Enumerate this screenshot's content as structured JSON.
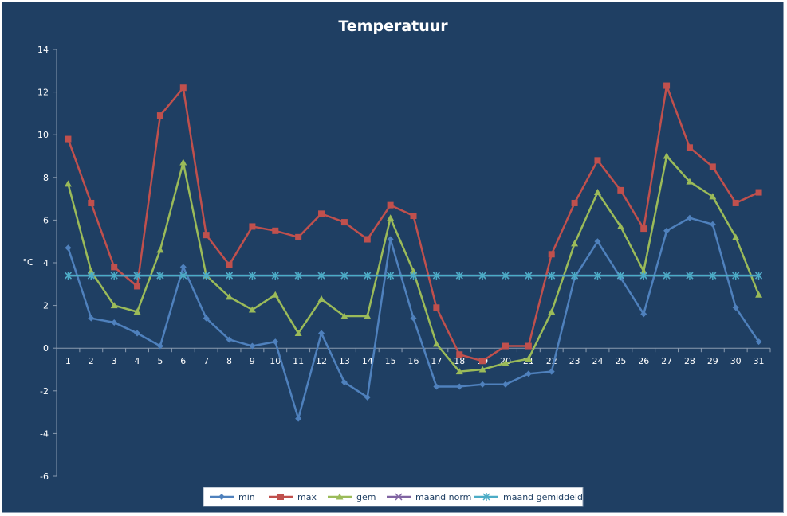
{
  "chart_data": {
    "type": "line",
    "title": "Temperatuur",
    "xlabel": "",
    "ylabel": "°C",
    "ylim": [
      -6,
      14
    ],
    "ytick_step": 2,
    "grid": false,
    "legend_position": "bottom",
    "background_color": "#1f3f63",
    "categories": [
      "1",
      "2",
      "3",
      "4",
      "5",
      "6",
      "7",
      "8",
      "9",
      "10",
      "11",
      "12",
      "13",
      "14",
      "15",
      "16",
      "17",
      "18",
      "19",
      "20",
      "21",
      "22",
      "23",
      "24",
      "25",
      "26",
      "27",
      "28",
      "29",
      "30",
      "31"
    ],
    "series": [
      {
        "name": "min",
        "color": "#4f81bd",
        "marker": "diamond",
        "values": [
          4.7,
          1.4,
          1.2,
          0.7,
          0.1,
          3.8,
          1.4,
          0.4,
          0.1,
          0.3,
          -3.3,
          0.7,
          -1.6,
          -2.3,
          5.1,
          1.4,
          -1.8,
          -1.8,
          -1.7,
          -1.7,
          -1.2,
          -1.1,
          3.3,
          5.0,
          3.3,
          1.6,
          5.5,
          6.1,
          5.8,
          1.9,
          0.3
        ]
      },
      {
        "name": "max",
        "color": "#c0504d",
        "marker": "square",
        "values": [
          9.8,
          6.8,
          3.8,
          2.9,
          10.9,
          12.2,
          5.3,
          3.9,
          5.7,
          5.5,
          5.2,
          6.3,
          5.9,
          5.1,
          6.7,
          6.2,
          1.9,
          -0.3,
          -0.6,
          0.1,
          0.1,
          4.4,
          6.8,
          8.8,
          7.4,
          5.6,
          12.3,
          9.4,
          8.5,
          6.8,
          7.3
        ]
      },
      {
        "name": "gem",
        "color": "#9bbb59",
        "marker": "triangle",
        "values": [
          7.7,
          3.6,
          2.0,
          1.7,
          4.6,
          8.7,
          3.4,
          2.4,
          1.8,
          2.5,
          0.7,
          2.3,
          1.5,
          1.5,
          6.1,
          3.6,
          0.2,
          -1.1,
          -1.0,
          -0.7,
          -0.5,
          1.7,
          4.9,
          7.3,
          5.7,
          3.6,
          9.0,
          7.8,
          7.1,
          5.2,
          2.5
        ]
      },
      {
        "name": "maand norm",
        "color": "#8064a2",
        "marker": "x",
        "values": [
          3.4,
          3.4,
          3.4,
          3.4,
          3.4,
          3.4,
          3.4,
          3.4,
          3.4,
          3.4,
          3.4,
          3.4,
          3.4,
          3.4,
          3.4,
          3.4,
          3.4,
          3.4,
          3.4,
          3.4,
          3.4,
          3.4,
          3.4,
          3.4,
          3.4,
          3.4,
          3.4,
          3.4,
          3.4,
          3.4,
          3.4
        ]
      },
      {
        "name": "maand gemiddelde",
        "color": "#4bacc6",
        "marker": "star",
        "values": [
          3.4,
          3.4,
          3.4,
          3.4,
          3.4,
          3.4,
          3.4,
          3.4,
          3.4,
          3.4,
          3.4,
          3.4,
          3.4,
          3.4,
          3.4,
          3.4,
          3.4,
          3.4,
          3.4,
          3.4,
          3.4,
          3.4,
          3.4,
          3.4,
          3.4,
          3.4,
          3.4,
          3.4,
          3.4,
          3.4,
          3.4
        ]
      }
    ]
  }
}
